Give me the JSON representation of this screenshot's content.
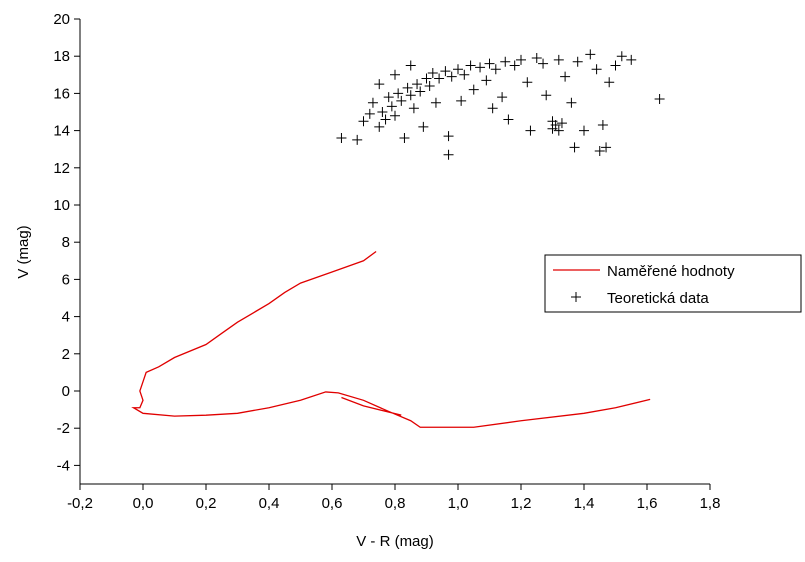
{
  "chart_data": {
    "type": "combo",
    "x_label": "V - R (mag)",
    "y_label": "V (mag)",
    "xlim": [
      -0.2,
      1.8
    ],
    "xticks": [
      {
        "value": -0.2,
        "label": "-0,2"
      },
      {
        "value": 0,
        "label": "0,0"
      },
      {
        "value": 0.2,
        "label": "0,2"
      },
      {
        "value": 0.4,
        "label": "0,4"
      },
      {
        "value": 0.6,
        "label": "0,6"
      },
      {
        "value": 0.8,
        "label": "0,8"
      },
      {
        "value": 1.0,
        "label": "1,0"
      },
      {
        "value": 1.2,
        "label": "1,2"
      },
      {
        "value": 1.4,
        "label": "1,4"
      },
      {
        "value": 1.6,
        "label": "1,6"
      },
      {
        "value": 1.8,
        "label": "1,8"
      }
    ],
    "ylim": [
      -5,
      20
    ],
    "yticks": [
      -4,
      -2,
      0,
      2,
      4,
      6,
      8,
      10,
      12,
      14,
      16,
      18,
      20
    ],
    "legend": "right",
    "series": [
      {
        "name": "Naměřené hodnoty",
        "type": "line",
        "color": "#e00000",
        "x": [
          0.74,
          0.7,
          0.6,
          0.5,
          0.45,
          0.4,
          0.35,
          0.3,
          0.25,
          0.2,
          0.1,
          0.05,
          0.01,
          0.0,
          -0.01,
          0.0,
          -0.01,
          -0.03,
          0.0,
          0.1,
          0.2,
          0.3,
          0.4,
          0.5,
          0.58,
          0.62,
          0.7,
          0.78,
          0.85,
          0.88,
          1.05,
          1.2,
          1.4,
          1.5,
          1.61,
          null,
          0.63,
          0.7,
          0.82
        ],
        "values": [
          7.5,
          7.0,
          6.4,
          5.8,
          5.3,
          4.7,
          4.2,
          3.7,
          3.1,
          2.5,
          1.8,
          1.3,
          1.0,
          0.5,
          0.0,
          -0.5,
          -0.9,
          -0.9,
          -1.2,
          -1.35,
          -1.3,
          -1.2,
          -0.9,
          -0.5,
          -0.05,
          -0.1,
          -0.5,
          -1.1,
          -1.6,
          -1.95,
          -1.95,
          -1.6,
          -1.2,
          -0.9,
          -0.45,
          null,
          -0.35,
          -0.8,
          -1.3
        ]
      },
      {
        "name": "Teoretická data",
        "type": "scatter",
        "color": "#000000",
        "x": [
          0.63,
          0.68,
          0.7,
          0.72,
          0.73,
          0.75,
          0.76,
          0.77,
          0.78,
          0.79,
          0.8,
          0.81,
          0.82,
          0.83,
          0.84,
          0.85,
          0.86,
          0.87,
          0.88,
          0.89,
          0.9,
          0.91,
          0.92,
          0.93,
          0.94,
          0.96,
          0.97,
          0.97,
          0.98,
          1.0,
          1.01,
          1.02,
          1.04,
          1.05,
          1.07,
          1.09,
          1.1,
          1.11,
          1.12,
          1.14,
          1.15,
          1.16,
          1.18,
          1.2,
          1.22,
          1.23,
          1.25,
          1.27,
          1.28,
          1.3,
          1.3,
          1.31,
          1.32,
          1.33,
          1.32,
          1.34,
          1.36,
          1.37,
          1.38,
          1.4,
          1.42,
          1.44,
          1.45,
          1.46,
          1.47,
          1.48,
          1.5,
          1.52,
          1.55,
          1.64,
          0.75,
          0.8,
          0.85
        ],
        "values": [
          13.6,
          13.5,
          14.5,
          14.9,
          15.5,
          14.2,
          15.0,
          14.6,
          15.8,
          15.3,
          14.8,
          16.0,
          15.6,
          13.6,
          16.3,
          15.9,
          15.2,
          16.5,
          16.1,
          14.2,
          16.8,
          16.4,
          17.1,
          15.5,
          16.8,
          17.2,
          13.7,
          12.7,
          16.9,
          17.3,
          15.6,
          17.0,
          17.5,
          16.2,
          17.4,
          16.7,
          17.6,
          15.2,
          17.3,
          15.8,
          17.7,
          14.6,
          17.5,
          17.8,
          16.6,
          14.0,
          17.9,
          17.6,
          15.9,
          14.5,
          14.1,
          14.3,
          14.0,
          14.4,
          17.8,
          16.9,
          15.5,
          13.1,
          17.7,
          14.0,
          18.1,
          17.3,
          12.9,
          14.3,
          13.1,
          16.6,
          17.5,
          18.0,
          17.8,
          15.7,
          16.5,
          17.0,
          17.5
        ]
      }
    ]
  }
}
